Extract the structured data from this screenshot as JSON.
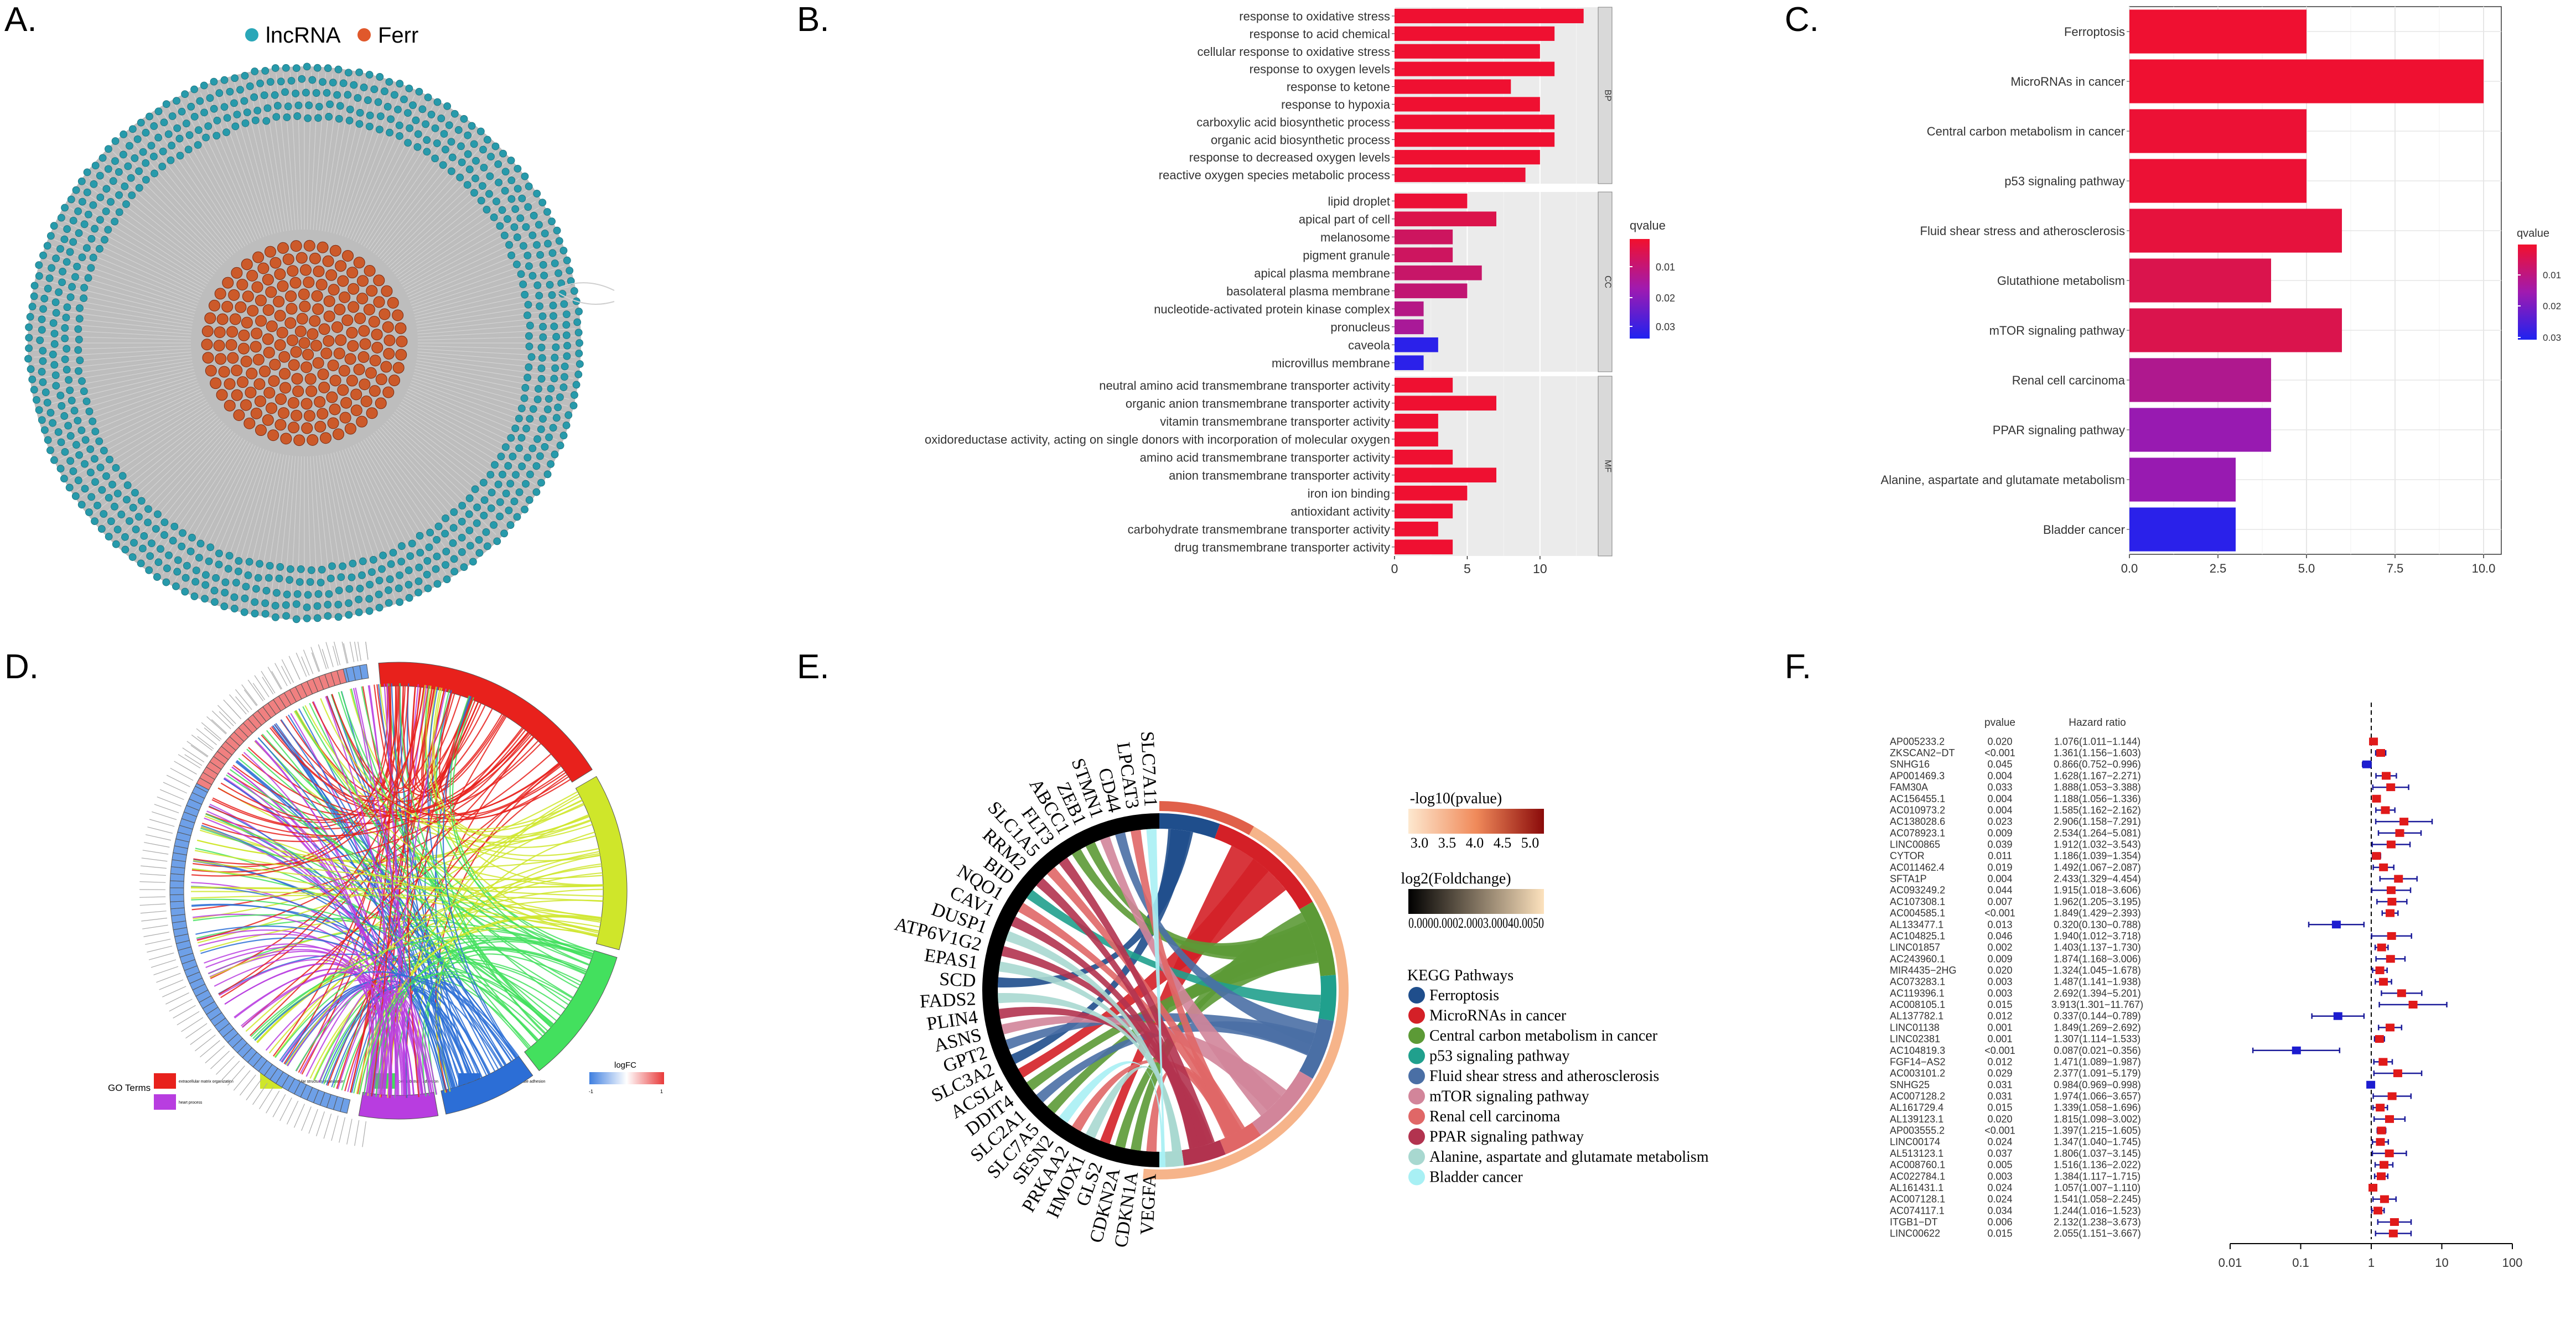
{
  "panels": {
    "A": {
      "label": "A.",
      "legend": [
        {
          "name": "lncRNA",
          "color": "#2aa7b8"
        },
        {
          "name": "Ferr",
          "color": "#e0582b"
        }
      ]
    },
    "B": {
      "label": "B.",
      "chart_data": {
        "type": "bar",
        "orientation": "horizontal",
        "xlim": [
          0,
          14
        ],
        "xticks": [
          0,
          5,
          10
        ],
        "legend_title": "qvalue",
        "legend_ticks": [
          "0.01",
          "0.02",
          "0.03"
        ],
        "qlim": [
          0.005,
          0.035
        ],
        "groups": [
          {
            "name": "BP",
            "items": [
              {
                "term": "response to oxidative stress",
                "count": 13,
                "q": 0.006
              },
              {
                "term": "response to acid chemical",
                "count": 11,
                "q": 0.006
              },
              {
                "term": "cellular response to oxidative stress",
                "count": 10,
                "q": 0.006
              },
              {
                "term": "response to oxygen levels",
                "count": 11,
                "q": 0.006
              },
              {
                "term": "response to ketone",
                "count": 8,
                "q": 0.006
              },
              {
                "term": "response to hypoxia",
                "count": 10,
                "q": 0.006
              },
              {
                "term": "carboxylic acid biosynthetic process",
                "count": 11,
                "q": 0.006
              },
              {
                "term": "organic acid biosynthetic process",
                "count": 11,
                "q": 0.006
              },
              {
                "term": "response to decreased oxygen levels",
                "count": 10,
                "q": 0.006
              },
              {
                "term": "reactive oxygen species metabolic process",
                "count": 9,
                "q": 0.007
              }
            ]
          },
          {
            "name": "CC",
            "items": [
              {
                "term": "lipid droplet",
                "count": 5,
                "q": 0.007
              },
              {
                "term": "apical part of cell",
                "count": 7,
                "q": 0.012
              },
              {
                "term": "melanosome",
                "count": 4,
                "q": 0.016
              },
              {
                "term": "pigment granule",
                "count": 4,
                "q": 0.016
              },
              {
                "term": "apical plasma membrane",
                "count": 6,
                "q": 0.017
              },
              {
                "term": "basolateral plasma membrane",
                "count": 5,
                "q": 0.018
              },
              {
                "term": "nucleotide-activated protein kinase complex",
                "count": 2,
                "q": 0.02
              },
              {
                "term": "pronucleus",
                "count": 2,
                "q": 0.022
              },
              {
                "term": "caveola",
                "count": 3,
                "q": 0.034
              },
              {
                "term": "microvillus membrane",
                "count": 2,
                "q": 0.034
              }
            ]
          },
          {
            "name": "MF",
            "items": [
              {
                "term": "neutral amino acid transmembrane transporter activity",
                "count": 4,
                "q": 0.006
              },
              {
                "term": "organic anion transmembrane transporter activity",
                "count": 7,
                "q": 0.006
              },
              {
                "term": "vitamin transmembrane transporter activity",
                "count": 3,
                "q": 0.006
              },
              {
                "term": "oxidoreductase activity, acting on single donors with incorporation of molecular oxygen",
                "count": 3,
                "q": 0.006
              },
              {
                "term": "amino acid transmembrane transporter activity",
                "count": 4,
                "q": 0.006
              },
              {
                "term": "anion transmembrane transporter activity",
                "count": 7,
                "q": 0.006
              },
              {
                "term": "iron ion binding",
                "count": 5,
                "q": 0.006
              },
              {
                "term": "antioxidant activity",
                "count": 4,
                "q": 0.006
              },
              {
                "term": "carbohydrate transmembrane transporter activity",
                "count": 3,
                "q": 0.006
              },
              {
                "term": "drug transmembrane transporter activity",
                "count": 4,
                "q": 0.006
              }
            ]
          }
        ]
      }
    },
    "C": {
      "label": "C.",
      "chart_data": {
        "type": "bar",
        "orientation": "horizontal",
        "xlim": [
          0,
          10.5
        ],
        "xticks": [
          "0.0",
          "2.5",
          "5.0",
          "7.5",
          "10.0"
        ],
        "legend_title": "qvalue",
        "legend_ticks": [
          "0.01",
          "0.02",
          "0.03"
        ],
        "qlim": [
          0.003,
          0.035
        ],
        "categories": [
          "Ferroptosis",
          "MicroRNAs in cancer",
          "Central carbon metabolism in cancer",
          "p53 signaling pathway",
          "Fluid shear stress and atherosclerosis",
          "Glutathione metabolism",
          "mTOR signaling pathway",
          "Renal cell carcinoma",
          "PPAR signaling pathway",
          "Alanine, aspartate and glutamate metabolism",
          "Bladder cancer"
        ],
        "values": [
          5,
          10,
          5,
          5,
          6,
          4,
          6,
          4,
          4,
          3,
          3
        ],
        "q": [
          0.004,
          0.004,
          0.005,
          0.005,
          0.007,
          0.011,
          0.011,
          0.02,
          0.024,
          0.024,
          0.034
        ]
      }
    },
    "D": {
      "label": "D.",
      "legend_title": "GO Terms",
      "logfc_title": "logFC",
      "logfc_ticks": [
        "-1",
        "1"
      ],
      "terms": [
        {
          "name": "extracellular matrix organization",
          "color": "#e8211c"
        },
        {
          "name": "extracellular structure organization",
          "color": "#cfe62a"
        },
        {
          "name": "cell-substrate adhesion",
          "color": "#43e05e"
        },
        {
          "name": "regulation of cell-substrate adhesion",
          "color": "#2c6ed6"
        },
        {
          "name": "heart process",
          "color": "#b83de0"
        }
      ]
    },
    "E": {
      "label": "E.",
      "pvalue_title": "-log10(pvalue)",
      "pvalue_ticks": [
        "3.0",
        "3.5",
        "4.0",
        "4.5",
        "5.0"
      ],
      "fc_title": "log2(Foldchange)",
      "fc_ticks": "0.0000.0002.0003.00040.0050",
      "legend_title": "KEGG Pathways",
      "genes": [
        "VEGFA",
        "CDKN1A",
        "CDKN2A",
        "GLS2",
        "HMOX1",
        "PRKAA2",
        "SESN2",
        "SLC7A5",
        "SLC2A1",
        "DDIT4",
        "ACSL4",
        "SLC3A2",
        "GPT2",
        "ASNS",
        "PLIN4",
        "FADS2",
        "SCD",
        "EPAS1",
        "ATP6V1G2",
        "DUSP1",
        "CAV1",
        "NQO1",
        "BID",
        "RRM2",
        "SLC1A5",
        "FLT3",
        "ABCC1",
        "ZEB1",
        "STMN1",
        "CD44",
        "LPCAT3",
        "SLC7A11"
      ],
      "pathways": [
        {
          "name": "Ferroptosis",
          "color": "#1f4e8c"
        },
        {
          "name": "MicroRNAs in cancer",
          "color": "#d42027"
        },
        {
          "name": "Central carbon metabolism in cancer",
          "color": "#5c9a36"
        },
        {
          "name": "p53 signaling pathway",
          "color": "#20a08d"
        },
        {
          "name": "Fluid shear stress and atherosclerosis",
          "color": "#4a6fa5"
        },
        {
          "name": "mTOR signaling pathway",
          "color": "#d2859a"
        },
        {
          "name": "Renal cell carcinoma",
          "color": "#e06767"
        },
        {
          "name": "PPAR signaling pathway",
          "color": "#b2334f"
        },
        {
          "name": "Alanine, aspartate and glutamate metabolism",
          "color": "#a8d8d0"
        },
        {
          "name": "Bladder cancer",
          "color": "#a8f0f4"
        }
      ]
    },
    "F": {
      "label": "F.",
      "pvalue_header": "pvalue",
      "hr_header": "Hazard ratio",
      "xticks": [
        "0.01",
        "0.1",
        "1",
        "10",
        "100"
      ],
      "chart_data": {
        "type": "forest",
        "xscale": "log",
        "xlim": [
          0.01,
          100
        ],
        "rows": [
          {
            "gene": "AP005233.2",
            "p": "0.020",
            "hr_text": "1.076(1.011−1.144)",
            "hr": 1.076,
            "lo": 1.011,
            "hi": 1.144
          },
          {
            "gene": "ZKSCAN2−DT",
            "p": "<0.001",
            "hr_text": "1.361(1.156−1.603)",
            "hr": 1.361,
            "lo": 1.156,
            "hi": 1.603
          },
          {
            "gene": "SNHG16",
            "p": "0.045",
            "hr_text": "0.866(0.752−0.996)",
            "hr": 0.866,
            "lo": 0.752,
            "hi": 0.996
          },
          {
            "gene": "AP001469.3",
            "p": "0.004",
            "hr_text": "1.628(1.167−2.271)",
            "hr": 1.628,
            "lo": 1.167,
            "hi": 2.271
          },
          {
            "gene": "FAM30A",
            "p": "0.033",
            "hr_text": "1.888(1.053−3.388)",
            "hr": 1.888,
            "lo": 1.053,
            "hi": 3.388
          },
          {
            "gene": "AC156455.1",
            "p": "0.004",
            "hr_text": "1.188(1.056−1.336)",
            "hr": 1.188,
            "lo": 1.056,
            "hi": 1.336
          },
          {
            "gene": "AC010973.2",
            "p": "0.004",
            "hr_text": "1.585(1.162−2.162)",
            "hr": 1.585,
            "lo": 1.162,
            "hi": 2.162
          },
          {
            "gene": "AC138028.6",
            "p": "0.023",
            "hr_text": "2.906(1.158−7.291)",
            "hr": 2.906,
            "lo": 1.158,
            "hi": 7.291
          },
          {
            "gene": "AC078923.1",
            "p": "0.009",
            "hr_text": "2.534(1.264−5.081)",
            "hr": 2.534,
            "lo": 1.264,
            "hi": 5.081
          },
          {
            "gene": "LINC00865",
            "p": "0.039",
            "hr_text": "1.912(1.032−3.543)",
            "hr": 1.912,
            "lo": 1.032,
            "hi": 3.543
          },
          {
            "gene": "CYTOR",
            "p": "0.011",
            "hr_text": "1.186(1.039−1.354)",
            "hr": 1.186,
            "lo": 1.039,
            "hi": 1.354
          },
          {
            "gene": "AC011462.4",
            "p": "0.019",
            "hr_text": "1.492(1.067−2.087)",
            "hr": 1.492,
            "lo": 1.067,
            "hi": 2.087
          },
          {
            "gene": "SFTA1P",
            "p": "0.004",
            "hr_text": "2.433(1.329−4.454)",
            "hr": 2.433,
            "lo": 1.329,
            "hi": 4.454
          },
          {
            "gene": "AC093249.2",
            "p": "0.044",
            "hr_text": "1.915(1.018−3.606)",
            "hr": 1.915,
            "lo": 1.018,
            "hi": 3.606
          },
          {
            "gene": "AC107308.1",
            "p": "0.007",
            "hr_text": "1.962(1.205−3.195)",
            "hr": 1.962,
            "lo": 1.205,
            "hi": 3.195
          },
          {
            "gene": "AC004585.1",
            "p": "<0.001",
            "hr_text": "1.849(1.429−2.393)",
            "hr": 1.849,
            "lo": 1.429,
            "hi": 2.393
          },
          {
            "gene": "AL133477.1",
            "p": "0.013",
            "hr_text": "0.320(0.130−0.788)",
            "hr": 0.32,
            "lo": 0.13,
            "hi": 0.788
          },
          {
            "gene": "AC104825.1",
            "p": "0.046",
            "hr_text": "1.940(1.012−3.718)",
            "hr": 1.94,
            "lo": 1.012,
            "hi": 3.718
          },
          {
            "gene": "LINC01857",
            "p": "0.002",
            "hr_text": "1.403(1.137−1.730)",
            "hr": 1.403,
            "lo": 1.137,
            "hi": 1.73
          },
          {
            "gene": "AC243960.1",
            "p": "0.009",
            "hr_text": "1.874(1.168−3.006)",
            "hr": 1.874,
            "lo": 1.168,
            "hi": 3.006
          },
          {
            "gene": "MIR4435−2HG",
            "p": "0.020",
            "hr_text": "1.324(1.045−1.678)",
            "hr": 1.324,
            "lo": 1.045,
            "hi": 1.678
          },
          {
            "gene": "AC073283.1",
            "p": "0.003",
            "hr_text": "1.487(1.141−1.938)",
            "hr": 1.487,
            "lo": 1.141,
            "hi": 1.938
          },
          {
            "gene": "AC119396.1",
            "p": "0.003",
            "hr_text": "2.692(1.394−5.201)",
            "hr": 2.692,
            "lo": 1.394,
            "hi": 5.201
          },
          {
            "gene": "AC008105.1",
            "p": "0.015",
            "hr_text": "3.913(1.301−11.767)",
            "hr": 3.913,
            "lo": 1.301,
            "hi": 11.767
          },
          {
            "gene": "AL137782.1",
            "p": "0.012",
            "hr_text": "0.337(0.144−0.789)",
            "hr": 0.337,
            "lo": 0.144,
            "hi": 0.789
          },
          {
            "gene": "LINC01138",
            "p": "0.001",
            "hr_text": "1.849(1.269−2.692)",
            "hr": 1.849,
            "lo": 1.269,
            "hi": 2.692
          },
          {
            "gene": "LINC02381",
            "p": "0.001",
            "hr_text": "1.307(1.114−1.533)",
            "hr": 1.307,
            "lo": 1.114,
            "hi": 1.533
          },
          {
            "gene": "AC104819.3",
            "p": "<0.001",
            "hr_text": "0.087(0.021−0.356)",
            "hr": 0.087,
            "lo": 0.021,
            "hi": 0.356
          },
          {
            "gene": "FGF14−AS2",
            "p": "0.012",
            "hr_text": "1.471(1.089−1.987)",
            "hr": 1.471,
            "lo": 1.089,
            "hi": 1.987
          },
          {
            "gene": "AC003101.2",
            "p": "0.029",
            "hr_text": "2.377(1.091−5.179)",
            "hr": 2.377,
            "lo": 1.091,
            "hi": 5.179
          },
          {
            "gene": "SNHG25",
            "p": "0.031",
            "hr_text": "0.984(0.969−0.998)",
            "hr": 0.984,
            "lo": 0.969,
            "hi": 0.998
          },
          {
            "gene": "AC007128.2",
            "p": "0.031",
            "hr_text": "1.974(1.066−3.657)",
            "hr": 1.974,
            "lo": 1.066,
            "hi": 3.657
          },
          {
            "gene": "AL161729.4",
            "p": "0.015",
            "hr_text": "1.339(1.058−1.696)",
            "hr": 1.339,
            "lo": 1.058,
            "hi": 1.696
          },
          {
            "gene": "AL139123.1",
            "p": "0.020",
            "hr_text": "1.815(1.098−3.002)",
            "hr": 1.815,
            "lo": 1.098,
            "hi": 3.002
          },
          {
            "gene": "AP003555.2",
            "p": "<0.001",
            "hr_text": "1.397(1.215−1.605)",
            "hr": 1.397,
            "lo": 1.215,
            "hi": 1.605
          },
          {
            "gene": "LINC00174",
            "p": "0.024",
            "hr_text": "1.347(1.040−1.745)",
            "hr": 1.347,
            "lo": 1.04,
            "hi": 1.745
          },
          {
            "gene": "AL513123.1",
            "p": "0.037",
            "hr_text": "1.806(1.037−3.145)",
            "hr": 1.806,
            "lo": 1.037,
            "hi": 3.145
          },
          {
            "gene": "AC008760.1",
            "p": "0.005",
            "hr_text": "1.516(1.136−2.022)",
            "hr": 1.516,
            "lo": 1.136,
            "hi": 2.022
          },
          {
            "gene": "AC022784.1",
            "p": "0.003",
            "hr_text": "1.384(1.117−1.715)",
            "hr": 1.384,
            "lo": 1.117,
            "hi": 1.715
          },
          {
            "gene": "AL161431.1",
            "p": "0.024",
            "hr_text": "1.057(1.007−1.110)",
            "hr": 1.057,
            "lo": 1.007,
            "hi": 1.11
          },
          {
            "gene": "AC007128.1",
            "p": "0.024",
            "hr_text": "1.541(1.058−2.245)",
            "hr": 1.541,
            "lo": 1.058,
            "hi": 2.245
          },
          {
            "gene": "AC074117.1",
            "p": "0.034",
            "hr_text": "1.244(1.016−1.523)",
            "hr": 1.244,
            "lo": 1.016,
            "hi": 1.523
          },
          {
            "gene": "ITGB1−DT",
            "p": "0.006",
            "hr_text": "2.132(1.238−3.673)",
            "hr": 2.132,
            "lo": 1.238,
            "hi": 3.673
          },
          {
            "gene": "LINC00622",
            "p": "0.015",
            "hr_text": "2.055(1.151−3.667)",
            "hr": 2.055,
            "lo": 1.151,
            "hi": 3.667
          }
        ]
      }
    }
  }
}
